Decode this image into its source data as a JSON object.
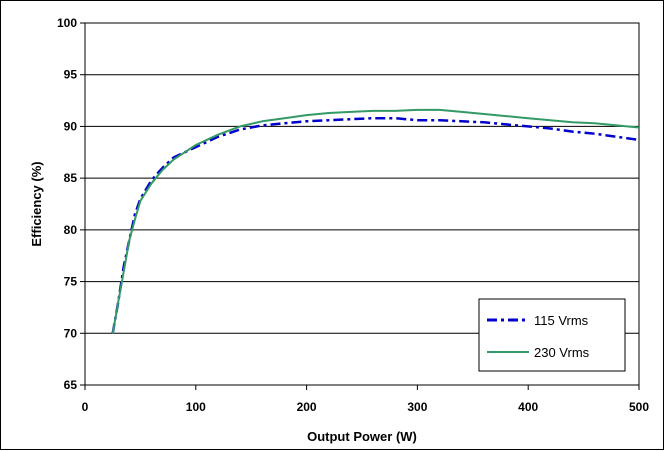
{
  "chart_data": {
    "type": "line",
    "title": "",
    "xlabel": "Output Power (W)",
    "ylabel": "Efficiency (%)",
    "xlim": [
      0,
      500
    ],
    "ylim": [
      65,
      100
    ],
    "xticks": [
      0,
      100,
      200,
      300,
      400,
      500
    ],
    "yticks": [
      65,
      70,
      75,
      80,
      85,
      90,
      95,
      100
    ],
    "grid": "horizontal",
    "legend_position": "bottom-right",
    "series": [
      {
        "name": "115 Vrms",
        "color": "#0000cc",
        "style": "dash-dot",
        "x": [
          25,
          30,
          35,
          40,
          45,
          50,
          60,
          70,
          80,
          90,
          100,
          120,
          140,
          160,
          180,
          200,
          220,
          240,
          260,
          280,
          300,
          320,
          340,
          360,
          380,
          400,
          420,
          440,
          460,
          480,
          500
        ],
        "y": [
          70.0,
          73.0,
          76.5,
          79.0,
          81.5,
          83.0,
          84.8,
          86.0,
          87.0,
          87.5,
          88.0,
          89.0,
          89.7,
          90.1,
          90.3,
          90.5,
          90.6,
          90.7,
          90.8,
          90.8,
          90.6,
          90.6,
          90.5,
          90.4,
          90.2,
          90.0,
          89.8,
          89.5,
          89.3,
          89.0,
          88.7
        ]
      },
      {
        "name": "230 Vrms",
        "color": "#339966",
        "style": "solid",
        "x": [
          25,
          30,
          35,
          40,
          45,
          50,
          60,
          70,
          80,
          90,
          100,
          120,
          140,
          160,
          180,
          200,
          220,
          240,
          260,
          280,
          300,
          320,
          340,
          360,
          380,
          400,
          420,
          440,
          460,
          480,
          500
        ],
        "y": [
          70.0,
          73.0,
          76.0,
          79.0,
          81.0,
          82.8,
          84.5,
          85.8,
          86.8,
          87.5,
          88.2,
          89.2,
          90.0,
          90.5,
          90.8,
          91.1,
          91.3,
          91.4,
          91.5,
          91.5,
          91.6,
          91.6,
          91.4,
          91.2,
          91.0,
          90.8,
          90.6,
          90.4,
          90.3,
          90.1,
          89.9
        ]
      }
    ]
  }
}
